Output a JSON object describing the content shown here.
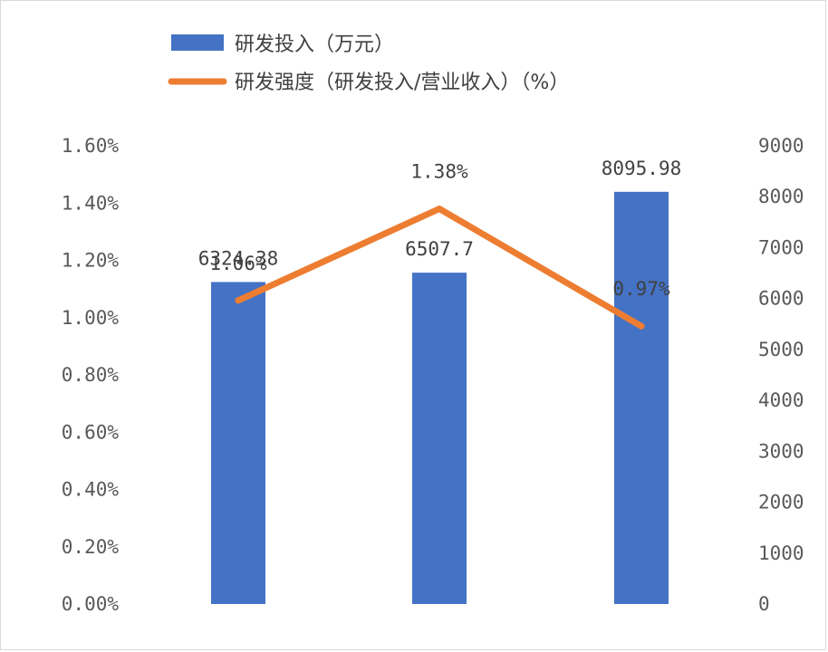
{
  "chart_data": {
    "type": "bar+line",
    "categories": [
      "",
      "",
      ""
    ],
    "series": [
      {
        "name": "研发投入（万元）",
        "type": "bar",
        "axis": "right",
        "color": "#4472C4",
        "values": [
          6324.38,
          6507.7,
          8095.98
        ],
        "labels": [
          "6324.38",
          "6507.7",
          "8095.98"
        ]
      },
      {
        "name": "研发强度（研发投入/营业收入）（%）",
        "type": "line",
        "axis": "left",
        "color": "#ED7D31",
        "values": [
          1.06,
          1.38,
          0.97
        ],
        "labels": [
          "1.06%",
          "1.38%",
          "0.97%"
        ]
      }
    ],
    "y_left": {
      "range": [
        0,
        1.6
      ],
      "ticks": [
        "0.00%",
        "0.20%",
        "0.40%",
        "0.60%",
        "0.80%",
        "1.00%",
        "1.20%",
        "1.40%",
        "1.60%"
      ]
    },
    "y_right": {
      "range": [
        0,
        9000
      ],
      "ticks": [
        "0",
        "1000",
        "2000",
        "3000",
        "4000",
        "5000",
        "6000",
        "7000",
        "8000",
        "9000"
      ]
    },
    "legend_position": "top",
    "grid": false
  }
}
